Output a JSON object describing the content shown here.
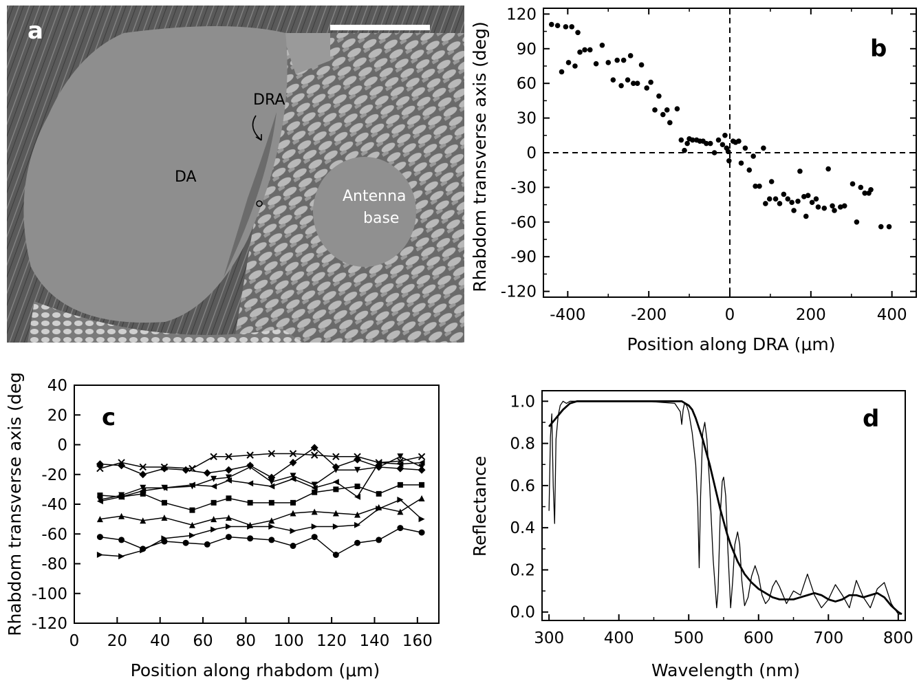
{
  "panel_a": {
    "letter": "a",
    "labels": {
      "dra": "DRA",
      "da": "DA",
      "antenna_line1": "Antenna",
      "antenna_line2": "base"
    },
    "colors": {
      "background": "#4a4a4a",
      "eye": "#8e8e8e",
      "dra_band": "#6b6b6b",
      "scale_bar": "#ffffff"
    }
  },
  "chart_data": [
    {
      "panel": "b",
      "type": "scatter",
      "title": "",
      "xlabel_prefix": "Position along DRA (",
      "xlabel_unit": "μm",
      "xlabel_suffix": ")",
      "ylabel": "Rhabdom transverse axis (deg)",
      "xlim": [
        -460,
        460
      ],
      "ylim": [
        -125,
        125
      ],
      "xticks": [
        "-400",
        "-200",
        "0",
        "200",
        "400"
      ],
      "xtick_values": [
        -400,
        -200,
        0,
        200,
        400
      ],
      "yticks": [
        "120",
        "90",
        "60",
        "30",
        "0",
        "-30",
        "-60",
        "-90",
        "-120"
      ],
      "ytick_values": [
        120,
        90,
        60,
        30,
        0,
        -30,
        -60,
        -90,
        -120
      ],
      "reference_lines": {
        "x": 0,
        "y": 0,
        "style": "dashed"
      },
      "points": [
        [
          -440,
          111
        ],
        [
          -425,
          110
        ],
        [
          -405,
          109
        ],
        [
          -390,
          109
        ],
        [
          -375,
          104
        ],
        [
          -415,
          70
        ],
        [
          -398,
          78
        ],
        [
          -382,
          75
        ],
        [
          -370,
          87
        ],
        [
          -358,
          89
        ],
        [
          -345,
          89
        ],
        [
          -330,
          77
        ],
        [
          -315,
          93
        ],
        [
          -300,
          78
        ],
        [
          -288,
          63
        ],
        [
          -278,
          80
        ],
        [
          -268,
          58
        ],
        [
          -262,
          80
        ],
        [
          -252,
          63
        ],
        [
          -245,
          84
        ],
        [
          -238,
          60
        ],
        [
          -228,
          60
        ],
        [
          -218,
          76
        ],
        [
          -205,
          56
        ],
        [
          -195,
          61
        ],
        [
          -185,
          37
        ],
        [
          -175,
          49
        ],
        [
          -165,
          33
        ],
        [
          -155,
          37
        ],
        [
          -148,
          26
        ],
        [
          -130,
          38
        ],
        [
          -120,
          11
        ],
        [
          -112,
          2
        ],
        [
          -105,
          8
        ],
        [
          -100,
          12
        ],
        [
          -92,
          11
        ],
        [
          -82,
          11
        ],
        [
          -74,
          10
        ],
        [
          -66,
          10
        ],
        [
          -58,
          8
        ],
        [
          -48,
          8
        ],
        [
          -38,
          0
        ],
        [
          -28,
          11
        ],
        [
          -18,
          7
        ],
        [
          -12,
          15
        ],
        [
          -8,
          4
        ],
        [
          -4,
          1
        ],
        [
          -2,
          -7
        ],
        [
          8,
          10
        ],
        [
          14,
          9
        ],
        [
          22,
          10
        ],
        [
          28,
          -9
        ],
        [
          38,
          4
        ],
        [
          48,
          -15
        ],
        [
          58,
          -3
        ],
        [
          63,
          -29
        ],
        [
          73,
          -29
        ],
        [
          83,
          4
        ],
        [
          88,
          -44
        ],
        [
          98,
          -40
        ],
        [
          103,
          -25
        ],
        [
          113,
          -40
        ],
        [
          123,
          -44
        ],
        [
          133,
          -36
        ],
        [
          143,
          -40
        ],
        [
          153,
          -43
        ],
        [
          158,
          -50
        ],
        [
          168,
          -42
        ],
        [
          173,
          -16
        ],
        [
          183,
          -38
        ],
        [
          188,
          -55
        ],
        [
          193,
          -37
        ],
        [
          203,
          -43
        ],
        [
          213,
          -40
        ],
        [
          218,
          -47
        ],
        [
          233,
          -48
        ],
        [
          243,
          -14
        ],
        [
          253,
          -46
        ],
        [
          258,
          -50
        ],
        [
          273,
          -47
        ],
        [
          283,
          -46
        ],
        [
          303,
          -27
        ],
        [
          313,
          -60
        ],
        [
          323,
          -30
        ],
        [
          333,
          -35
        ],
        [
          343,
          -35
        ],
        [
          348,
          -32
        ],
        [
          373,
          -64
        ],
        [
          393,
          -64
        ]
      ]
    },
    {
      "panel": "c",
      "type": "line",
      "title": "",
      "xlabel_prefix": "Position along rhabdom (",
      "xlabel_unit": "μm",
      "xlabel_suffix": ")",
      "ylabel": "Rhabdom transverse axis (deg)",
      "xlim": [
        0,
        170
      ],
      "ylim": [
        -120,
        40
      ],
      "xticks": [
        "0",
        "20",
        "40",
        "60",
        "80",
        "100",
        "120",
        "140",
        "160"
      ],
      "xtick_values": [
        0,
        20,
        40,
        60,
        80,
        100,
        120,
        140,
        160
      ],
      "yticks": [
        "40",
        "20",
        "0",
        "-20",
        "-40",
        "-60",
        "-80",
        "-100",
        "-120"
      ],
      "ytick_values": [
        40,
        20,
        0,
        -20,
        -40,
        -60,
        -80,
        -100,
        -120
      ],
      "series": [
        {
          "marker": "x",
          "x": [
            12,
            22,
            32,
            42,
            55,
            65,
            72,
            82,
            92,
            102,
            112,
            122,
            132,
            142,
            152,
            162
          ],
          "y": [
            -16,
            -12,
            -15,
            -15,
            -16,
            -8,
            -8,
            -7,
            -6,
            -6,
            -7,
            -8,
            -8,
            -12,
            -11,
            -8
          ]
        },
        {
          "marker": "diamond",
          "x": [
            12,
            22,
            32,
            42,
            52,
            62,
            72,
            82,
            92,
            102,
            112,
            122,
            132,
            142,
            152,
            162
          ],
          "y": [
            -13,
            -14,
            -20,
            -16,
            -17,
            -19,
            -17,
            -14,
            -22,
            -12,
            -2,
            -15,
            -10,
            -15,
            -16,
            -17
          ]
        },
        {
          "marker": "triangle-down",
          "x": [
            12,
            22,
            32,
            42,
            55,
            65,
            72,
            82,
            92,
            102,
            112,
            122,
            132,
            142,
            152,
            162
          ],
          "y": [
            -37,
            -34,
            -29,
            -29,
            -28,
            -23,
            -22,
            -15,
            -25,
            -21,
            -27,
            -17,
            -17,
            -15,
            -8,
            -15
          ]
        },
        {
          "marker": "triangle-left",
          "x": [
            12,
            22,
            32,
            42,
            55,
            65,
            72,
            82,
            92,
            102,
            112,
            122,
            132,
            142,
            152,
            162
          ],
          "y": [
            -38,
            -35,
            -31,
            -29,
            -27,
            -28,
            -24,
            -26,
            -28,
            -23,
            -29,
            -25,
            -35,
            -12,
            -13,
            -12
          ]
        },
        {
          "marker": "square",
          "x": [
            12,
            22,
            32,
            42,
            55,
            65,
            72,
            82,
            92,
            102,
            112,
            122,
            132,
            142,
            152,
            162
          ],
          "y": [
            -34,
            -35,
            -33,
            -39,
            -44,
            -39,
            -36,
            -39,
            -39,
            -39,
            -32,
            -30,
            -28,
            -33,
            -27,
            -27
          ]
        },
        {
          "marker": "triangle-up",
          "x": [
            12,
            22,
            32,
            42,
            55,
            65,
            72,
            82,
            92,
            102,
            112,
            122,
            132,
            142,
            152,
            162
          ],
          "y": [
            -50,
            -48,
            -51,
            -49,
            -54,
            -50,
            -49,
            -54,
            -51,
            -46,
            -45,
            -46,
            -47,
            -42,
            -45,
            -36
          ]
        },
        {
          "marker": "triangle-right",
          "x": [
            12,
            22,
            32,
            42,
            55,
            65,
            72,
            82,
            92,
            102,
            112,
            122,
            132,
            142,
            152,
            162
          ],
          "y": [
            -74,
            -75,
            -71,
            -63,
            -61,
            -57,
            -55,
            -55,
            -55,
            -58,
            -55,
            -55,
            -54,
            -43,
            -37,
            -50
          ]
        },
        {
          "marker": "circle",
          "x": [
            12,
            22,
            32,
            42,
            52,
            62,
            72,
            82,
            92,
            102,
            112,
            122,
            132,
            142,
            152,
            162
          ],
          "y": [
            -62,
            -64,
            -70,
            -65,
            -66,
            -67,
            -62,
            -63,
            -64,
            -68,
            -62,
            -74,
            -66,
            -64,
            -56,
            -59
          ]
        }
      ]
    },
    {
      "panel": "d",
      "type": "line",
      "title": "",
      "xlabel": "Wavelength (nm)",
      "ylabel": "Reflectance",
      "xlim": [
        290,
        810
      ],
      "ylim": [
        -0.04,
        1.05
      ],
      "xticks": [
        "300",
        "400",
        "500",
        "600",
        "700",
        "800"
      ],
      "xtick_values": [
        300,
        400,
        500,
        600,
        700,
        800
      ],
      "yticks": [
        "1.0",
        "0.8",
        "0.6",
        "0.4",
        "0.2",
        "0.0"
      ],
      "ytick_values": [
        1.0,
        0.8,
        0.6,
        0.4,
        0.2,
        0.0
      ],
      "series": [
        {
          "style": "thick",
          "x": [
            300,
            310,
            320,
            330,
            340,
            360,
            400,
            440,
            480,
            490,
            500,
            505,
            510,
            515,
            520,
            525,
            530,
            535,
            540,
            545,
            550,
            555,
            560,
            570,
            580,
            590,
            600,
            610,
            620,
            630,
            640,
            650,
            660,
            670,
            680,
            690,
            700,
            710,
            720,
            730,
            740,
            750,
            760,
            770,
            780,
            790,
            800,
            805
          ],
          "y": [
            0.88,
            0.92,
            0.96,
            0.99,
            1.0,
            1.0,
            1.0,
            1.0,
            1.0,
            1.0,
            0.98,
            0.96,
            0.92,
            0.87,
            0.82,
            0.76,
            0.7,
            0.63,
            0.56,
            0.49,
            0.43,
            0.37,
            0.32,
            0.24,
            0.18,
            0.14,
            0.11,
            0.09,
            0.07,
            0.06,
            0.06,
            0.06,
            0.07,
            0.08,
            0.09,
            0.08,
            0.06,
            0.05,
            0.06,
            0.08,
            0.08,
            0.07,
            0.08,
            0.09,
            0.07,
            0.03,
            0.0,
            -0.01
          ]
        },
        {
          "style": "thin",
          "x": [
            300,
            302,
            304,
            306,
            308,
            310,
            313,
            316,
            320,
            325,
            330,
            340,
            360,
            400,
            440,
            480,
            488,
            490,
            492,
            494,
            497,
            500,
            505,
            510,
            513,
            515,
            517,
            520,
            523,
            526,
            530,
            535,
            540,
            542,
            545,
            548,
            550,
            553,
            556,
            560,
            563,
            566,
            570,
            573,
            576,
            580,
            585,
            590,
            595,
            600,
            605,
            610,
            615,
            620,
            625,
            630,
            640,
            650,
            660,
            670,
            680,
            690,
            700,
            710,
            720,
            730,
            740,
            750,
            760,
            770,
            780,
            790,
            800,
            805
          ],
          "y": [
            0.48,
            0.83,
            0.94,
            0.6,
            0.42,
            0.82,
            0.93,
            0.98,
            1.0,
            0.99,
            1.0,
            1.0,
            1.0,
            1.0,
            1.0,
            0.99,
            0.95,
            0.89,
            0.96,
            0.99,
            0.98,
            0.95,
            0.85,
            0.7,
            0.5,
            0.21,
            0.55,
            0.85,
            0.9,
            0.82,
            0.6,
            0.25,
            0.02,
            0.1,
            0.45,
            0.62,
            0.64,
            0.55,
            0.3,
            0.02,
            0.15,
            0.32,
            0.38,
            0.32,
            0.15,
            0.03,
            0.07,
            0.17,
            0.22,
            0.17,
            0.08,
            0.04,
            0.06,
            0.12,
            0.15,
            0.12,
            0.04,
            0.1,
            0.08,
            0.18,
            0.08,
            0.02,
            0.06,
            0.13,
            0.08,
            0.02,
            0.15,
            0.07,
            0.02,
            0.11,
            0.14,
            0.04,
            -0.01,
            -0.01
          ]
        }
      ]
    }
  ],
  "panel_letters": {
    "b": "b",
    "c": "c",
    "d": "d"
  }
}
